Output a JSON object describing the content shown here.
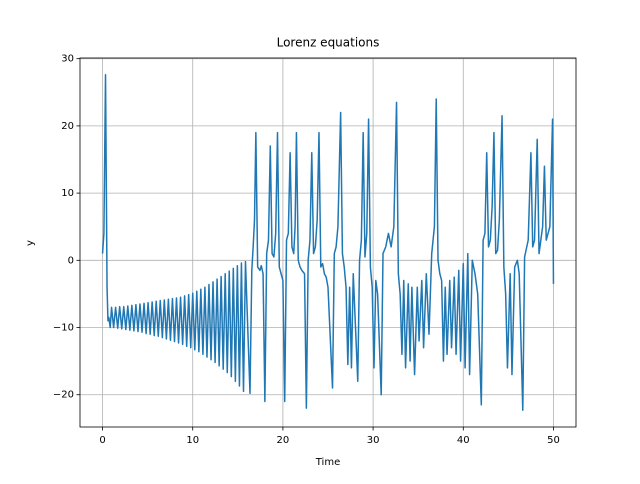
{
  "chart_data": {
    "type": "line",
    "title": "Lorenz equations",
    "xlabel": "Time",
    "ylabel": "y",
    "color": "#1f77b4",
    "grid": true,
    "xlim": [
      -2.5,
      52.5
    ],
    "ylim": [
      -24.8,
      30.1
    ],
    "xticks": [
      0,
      10,
      20,
      30,
      40,
      50
    ],
    "yticks": [
      {
        "value": -20,
        "label": "−20"
      },
      {
        "value": -10,
        "label": "−10"
      },
      0,
      10,
      20,
      30
    ],
    "x": [
      0,
      0.15,
      0.33,
      0.5,
      0.6,
      0.7,
      0.85,
      1.0,
      1.23,
      1.45,
      1.68,
      1.9,
      2.13,
      2.35,
      2.58,
      2.8,
      3.03,
      3.25,
      3.48,
      3.7,
      3.93,
      4.15,
      4.38,
      4.6,
      4.83,
      5.05,
      5.28,
      5.5,
      5.73,
      5.95,
      6.18,
      6.4,
      6.63,
      6.85,
      7.08,
      7.3,
      7.53,
      7.75,
      7.98,
      8.2,
      8.43,
      8.65,
      8.88,
      9.1,
      9.33,
      9.55,
      9.78,
      10.0,
      10.23,
      10.45,
      10.68,
      10.9,
      11.13,
      11.35,
      11.58,
      11.8,
      12.03,
      12.25,
      12.48,
      12.7,
      12.93,
      13.15,
      13.38,
      13.6,
      13.83,
      14.05,
      14.28,
      14.5,
      14.73,
      14.95,
      15.18,
      15.4,
      15.63,
      15.85,
      16.35,
      16.55,
      16.7,
      16.85,
      17.0,
      17.2,
      17.45,
      17.6,
      17.8,
      18.0,
      18.2,
      18.4,
      18.6,
      18.8,
      19.0,
      19.2,
      19.4,
      19.6,
      19.8,
      20.0,
      20.2,
      20.4,
      20.6,
      20.8,
      21.0,
      21.2,
      21.35,
      21.5,
      21.7,
      21.9,
      22.1,
      22.4,
      22.6,
      22.8,
      23.0,
      23.2,
      23.4,
      23.6,
      23.8,
      24.0,
      24.2,
      24.4,
      24.6,
      24.8,
      25.0,
      25.5,
      25.7,
      25.9,
      26.1,
      26.4,
      26.6,
      26.8,
      27.0,
      27.2,
      27.4,
      27.6,
      27.8,
      28.3,
      28.5,
      28.7,
      28.9,
      29.1,
      29.3,
      29.5,
      29.7,
      29.9,
      30.1,
      30.3,
      30.5,
      30.9,
      31.1,
      31.4,
      31.7,
      32.0,
      32.3,
      32.6,
      32.8,
      33.0,
      33.2,
      33.4,
      33.6,
      33.9,
      34.1,
      34.3,
      34.6,
      34.9,
      35.1,
      35.4,
      35.6,
      35.9,
      36.2,
      36.5,
      36.8,
      37.0,
      37.2,
      37.4,
      37.6,
      37.8,
      38.0,
      38.2,
      38.5,
      38.7,
      39.0,
      39.2,
      39.5,
      39.7,
      40.0,
      40.2,
      40.5,
      40.7,
      41.0,
      41.3,
      41.6,
      42.0,
      42.2,
      42.4,
      42.6,
      42.8,
      43.0,
      43.2,
      43.4,
      43.6,
      43.8,
      44.0,
      44.3,
      44.5,
      44.7,
      44.9,
      45.2,
      45.4,
      45.7,
      46.0,
      46.2,
      46.6,
      46.8,
      47.2,
      47.5,
      47.7,
      47.9,
      48.2,
      48.4,
      48.6,
      48.8,
      49.0,
      49.2,
      49.6,
      49.9,
      50.0
    ],
    "values": [
      1,
      4,
      27.6,
      -4,
      -9,
      -8.5,
      -10,
      -7.0,
      -10.0,
      -7.0,
      -10.1,
      -6.9,
      -10.2,
      -6.9,
      -10.3,
      -6.8,
      -10.4,
      -6.7,
      -10.5,
      -6.6,
      -10.6,
      -6.5,
      -10.7,
      -6.4,
      -10.9,
      -6.3,
      -11.0,
      -6.2,
      -11.2,
      -6.1,
      -11.3,
      -6.0,
      -11.5,
      -5.9,
      -11.7,
      -5.8,
      -11.9,
      -5.7,
      -12.1,
      -5.6,
      -12.3,
      -5.5,
      -12.5,
      -5.3,
      -12.8,
      -5.1,
      -13.0,
      -4.9,
      -13.3,
      -4.6,
      -13.6,
      -4.3,
      -14.0,
      -4.0,
      -14.4,
      -3.6,
      -14.8,
      -3.2,
      -15.2,
      -2.8,
      -15.7,
      -2.4,
      -16.2,
      -2.0,
      -16.7,
      -1.6,
      -17.3,
      -1.2,
      -18.0,
      -0.8,
      -18.7,
      -0.4,
      -19.5,
      -0.2,
      -19.8,
      -1.5,
      2,
      6,
      19,
      -1,
      -1.5,
      -0.8,
      -2,
      -21,
      1,
      3,
      17,
      1,
      0.5,
      4,
      19,
      -1,
      -2,
      -3,
      -21,
      3,
      4,
      16,
      2,
      1,
      5,
      19,
      0,
      -1,
      -1.5,
      -2,
      -22,
      0,
      3,
      16,
      1,
      2,
      6,
      19,
      -1,
      -0.5,
      -2,
      -2.5,
      -4,
      -19,
      1,
      2,
      5,
      22,
      1,
      -1,
      -4,
      -15.5,
      -4,
      -16,
      -2,
      -18,
      0,
      3,
      19,
      0.5,
      4,
      21,
      -1,
      -4,
      -16,
      -3,
      -5,
      -20,
      1,
      2,
      4,
      2,
      5,
      23.5,
      -2,
      -5,
      -14,
      -3,
      -16,
      -3.5,
      -15,
      -4,
      -17,
      -4,
      -12,
      -3,
      -13,
      -2,
      -11,
      1,
      5,
      24,
      0,
      -2,
      -3,
      -15,
      -4,
      -14,
      -3,
      -13,
      -2.5,
      -14,
      -1.5,
      -15,
      -0.5,
      -16,
      1,
      -17,
      0,
      -2,
      -5,
      -21.5,
      3,
      4,
      16,
      2,
      3,
      8,
      19,
      1,
      1.5,
      6,
      21.5,
      -1,
      -5,
      -16,
      -2,
      -17,
      -1,
      0,
      -2,
      -22.3,
      0.5,
      3,
      16,
      2,
      3,
      18,
      1,
      3,
      5,
      14,
      3,
      5,
      21,
      -3.5
    ]
  }
}
